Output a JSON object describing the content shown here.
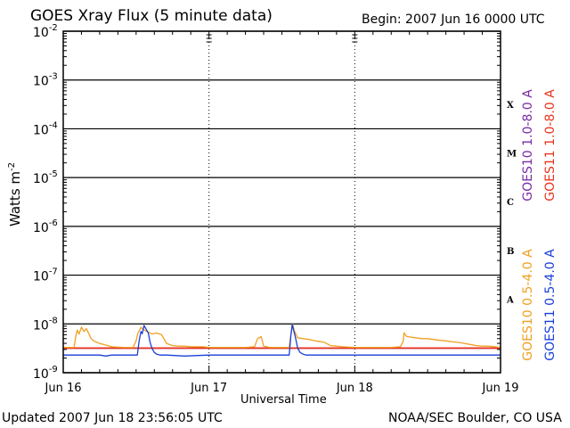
{
  "chart_data": {
    "type": "line",
    "title": "GOES Xray Flux (5 minute data)",
    "begin_label": "Begin:  2007 Jun 16 0000 UTC",
    "xlabel": "Universal Time",
    "ylabel": "Watts m",
    "ylabel_sup": "-2",
    "x_unit": "hours since begin",
    "xlim": [
      0,
      72
    ],
    "x_ticks": [
      {
        "value": 0,
        "label": "Jun 16"
      },
      {
        "value": 24,
        "label": "Jun 17"
      },
      {
        "value": 48,
        "label": "Jun 18"
      },
      {
        "value": 72,
        "label": "Jun 19"
      }
    ],
    "y_scale": "log",
    "ylim": [
      1e-09,
      0.01
    ],
    "y_ticks": [
      {
        "value": 1e-09,
        "base": "10",
        "exp": "-9"
      },
      {
        "value": 1e-08,
        "base": "10",
        "exp": "-8"
      },
      {
        "value": 1e-07,
        "base": "10",
        "exp": "-7"
      },
      {
        "value": 1e-06,
        "base": "10",
        "exp": "-6"
      },
      {
        "value": 1e-05,
        "base": "10",
        "exp": "-5"
      },
      {
        "value": 0.0001,
        "base": "10",
        "exp": "-4"
      },
      {
        "value": 0.001,
        "base": "10",
        "exp": "-3"
      },
      {
        "value": 0.01,
        "base": "10",
        "exp": "-2"
      }
    ],
    "flare_classes": [
      {
        "label": "A",
        "value": 3.2e-08
      },
      {
        "label": "B",
        "value": 3.2e-07
      },
      {
        "label": "C",
        "value": 3.2e-06
      },
      {
        "label": "M",
        "value": 3.2e-05
      },
      {
        "label": "X",
        "value": 0.00032
      }
    ],
    "series": [
      {
        "name": "GOES10 1.0-8.0 A",
        "color": "#7b2aa6",
        "x": [
          0,
          72
        ],
        "y": [
          3.2e-09,
          3.2e-09
        ]
      },
      {
        "name": "GOES11 1.0-8.0 A",
        "color": "#e8341c",
        "x": [
          0,
          72
        ],
        "y": [
          3.2e-09,
          3.2e-09
        ]
      },
      {
        "name": "GOES10 0.5-4.0 A",
        "color": "#f0a020",
        "x": [
          0,
          1.8,
          2.0,
          2.3,
          2.6,
          3.0,
          3.4,
          3.8,
          4.3,
          4.6,
          5.0,
          6,
          8,
          10,
          11.5,
          12,
          12.3,
          12.8,
          13.3,
          14.0,
          14.6,
          15.4,
          16.2,
          17,
          18,
          19,
          20,
          21,
          22,
          23,
          24,
          26,
          28,
          30,
          31.5,
          32.0,
          32.6,
          33.0,
          34,
          36,
          37.2,
          37.5,
          37.8,
          38.0,
          38.6,
          39.5,
          40.5,
          41.5,
          42,
          43,
          44,
          45,
          46,
          48,
          50,
          52,
          53,
          54,
          55.5,
          56.0,
          56.1,
          56.5,
          57,
          58,
          59,
          60,
          61,
          62,
          63,
          64,
          65,
          66,
          67,
          68,
          69,
          70,
          71,
          72
        ],
        "y": [
          3.3e-09,
          3.3e-09,
          5e-09,
          7.5e-09,
          6.2e-09,
          8.6e-09,
          7e-09,
          8e-09,
          6e-09,
          5e-09,
          4.5e-09,
          4e-09,
          3.4e-09,
          3.3e-09,
          3.3e-09,
          4.5e-09,
          6.5e-09,
          8.5e-09,
          7.5e-09,
          6.8e-09,
          6.2e-09,
          6.5e-09,
          6e-09,
          4e-09,
          3.6e-09,
          3.5e-09,
          3.5e-09,
          3.4e-09,
          3.4e-09,
          3.4e-09,
          3.3e-09,
          3.3e-09,
          3.3e-09,
          3.3e-09,
          3.4e-09,
          5e-09,
          5.5e-09,
          3.5e-09,
          3.3e-09,
          3.3e-09,
          3.3e-09,
          6e-09,
          9.8e-09,
          7.5e-09,
          5.2e-09,
          5e-09,
          4.8e-09,
          4.5e-09,
          4.4e-09,
          4.2e-09,
          3.6e-09,
          3.5e-09,
          3.4e-09,
          3.3e-09,
          3.3e-09,
          3.3e-09,
          3.3e-09,
          3.3e-09,
          3.4e-09,
          4.5e-09,
          6.6e-09,
          5.6e-09,
          5.4e-09,
          5.2e-09,
          5e-09,
          5e-09,
          4.8e-09,
          4.6e-09,
          4.5e-09,
          4.3e-09,
          4.2e-09,
          4e-09,
          3.8e-09,
          3.6e-09,
          3.5e-09,
          3.5e-09,
          3.4e-09,
          3.3e-09
        ]
      },
      {
        "name": "GOES11 0.5-4.0 A",
        "color": "#1a3fd8",
        "x": [
          0,
          6,
          7,
          8,
          11,
          12.2,
          12.5,
          12.8,
          13.0,
          13.3,
          13.6,
          14.0,
          14.3,
          14.6,
          15.0,
          15.4,
          16.0,
          17,
          20,
          24,
          30,
          36,
          37.2,
          37.5,
          37.7,
          38.0,
          38.3,
          38.6,
          39.0,
          39.5,
          40,
          44,
          48,
          60,
          72
        ],
        "y": [
          2.3e-09,
          2.3e-09,
          2.2e-09,
          2.3e-09,
          2.3e-09,
          2.3e-09,
          4.5e-09,
          7e-09,
          6.3e-09,
          9.3e-09,
          8e-09,
          6.5e-09,
          4.2e-09,
          3.2e-09,
          2.6e-09,
          2.4e-09,
          2.3e-09,
          2.3e-09,
          2.2e-09,
          2.3e-09,
          2.3e-09,
          2.3e-09,
          2.3e-09,
          6e-09,
          9.8e-09,
          7e-09,
          4.8e-09,
          3.2e-09,
          2.6e-09,
          2.4e-09,
          2.3e-09,
          2.3e-09,
          2.3e-09,
          2.3e-09,
          2.3e-09
        ]
      }
    ]
  },
  "footer": {
    "updated": "Updated 2007 Jun 18 23:56:05 UTC",
    "credit": "NOAA/SEC Boulder, CO USA"
  }
}
